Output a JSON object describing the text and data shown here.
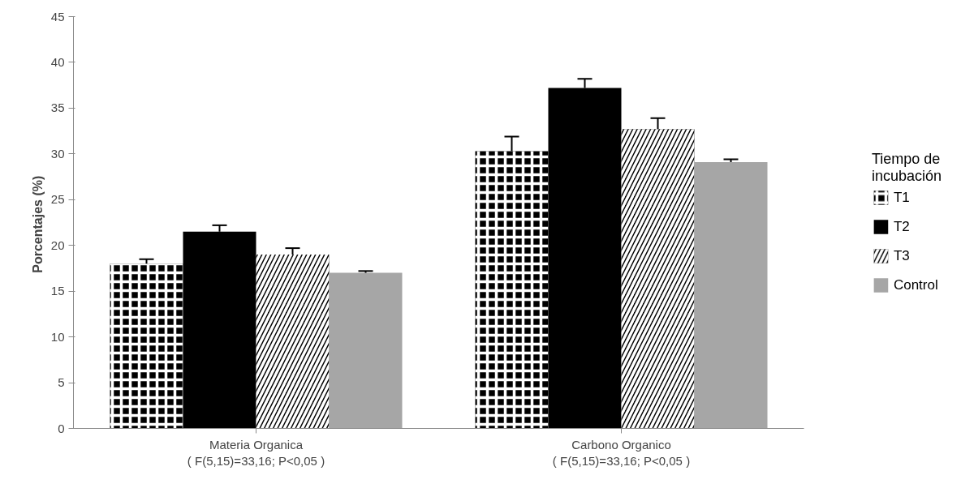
{
  "chart_data": {
    "type": "bar",
    "categories": [
      "Materia Organica\n( F(5,15)=33,16; P<0,05 )",
      "Carbono Organico\n( F(5,15)=33,16; P<0,05 )"
    ],
    "ylabel": "Porcentajes  (%)",
    "legend_title": "Tiempo de\nincubación",
    "series": [
      {
        "name": "T1",
        "color": "#000000",
        "values": [
          18.0,
          30.3
        ],
        "errors": [
          [
            18.0,
            18.5
          ],
          [
            30.3,
            31.9
          ]
        ]
      },
      {
        "name": "T2",
        "color": "#000000",
        "values": [
          21.5,
          37.2
        ],
        "errors": [
          [
            21.5,
            22.2
          ],
          [
            37.2,
            38.2
          ]
        ]
      },
      {
        "name": "T3",
        "color": "#000000",
        "values": [
          19.0,
          32.7
        ],
        "errors": [
          [
            19.0,
            19.7
          ],
          [
            32.7,
            33.9
          ]
        ]
      },
      {
        "name": "Control",
        "color": "#a6a6a6",
        "values": [
          17.0,
          29.1
        ],
        "errors": [
          [
            17.0,
            17.2
          ],
          [
            29.1,
            29.4
          ]
        ]
      }
    ],
    "ylim": [
      0,
      45
    ],
    "yticks": [
      0,
      5,
      10,
      15,
      20,
      25,
      30,
      35,
      40,
      45
    ],
    "grid": false,
    "legend": "right"
  }
}
